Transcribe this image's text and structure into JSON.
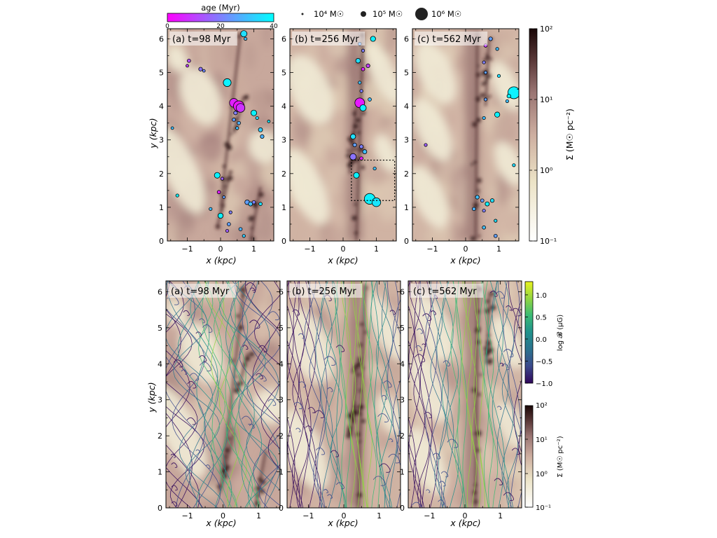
{
  "chart_data": [
    {
      "type": "heatmap",
      "name": "top-row-surface-density",
      "xlabel": "x (kpc)",
      "ylabel": "y (kpc)",
      "xlim": [
        -1.6,
        1.6
      ],
      "ylim": [
        0,
        6.3
      ],
      "xticks": [
        -1,
        0,
        1
      ],
      "yticks": [
        0,
        1,
        2,
        3,
        4,
        5,
        6
      ],
      "panels": [
        {
          "label": "(a) t=98 Myr"
        },
        {
          "label": "(b) t=256 Myr"
        },
        {
          "label": "(c) t=562 Myr"
        }
      ],
      "colorbar": {
        "label": "Σ (M☉ pc⁻²)",
        "scale": "log",
        "range": [
          0.1,
          100
        ],
        "ticks": [
          "10²",
          "10¹",
          "10⁰",
          "10⁻¹"
        ],
        "colors": [
          "#ffffff",
          "#e8e0c4",
          "#c9a89a",
          "#8e6a68",
          "#4a2c2c",
          "#1a0808"
        ]
      },
      "age_colorbar": {
        "label": "age (Myr)",
        "range": [
          0,
          40
        ],
        "ticks": [
          "0",
          "20",
          "40"
        ],
        "colors": [
          "#ff00ff",
          "#00ffff"
        ]
      },
      "size_legend": [
        "10⁴ M☉",
        "10⁵ M☉",
        "10⁶ M☉"
      ],
      "clusters": [
        [
          {
            "x": 0.7,
            "y": 6.15,
            "m": 5.0,
            "age": 35
          },
          {
            "x": 0.75,
            "y": 6.0,
            "m": 4.3,
            "age": 30
          },
          {
            "x": -0.95,
            "y": 5.35,
            "m": 4.4,
            "age": 12
          },
          {
            "x": -1.0,
            "y": 5.2,
            "m": 4.2,
            "age": 10
          },
          {
            "x": -0.6,
            "y": 5.1,
            "m": 4.5,
            "age": 18
          },
          {
            "x": -0.5,
            "y": 5.05,
            "m": 4.2,
            "age": 22
          },
          {
            "x": 0.2,
            "y": 4.7,
            "m": 5.2,
            "age": 38
          },
          {
            "x": 0.4,
            "y": 4.1,
            "m": 5.3,
            "age": 5
          },
          {
            "x": 0.55,
            "y": 4.0,
            "m": 5.5,
            "age": 3
          },
          {
            "x": 0.6,
            "y": 3.95,
            "m": 5.3,
            "age": 8
          },
          {
            "x": 0.45,
            "y": 3.8,
            "m": 4.5,
            "age": 20
          },
          {
            "x": 0.4,
            "y": 3.6,
            "m": 4.4,
            "age": 25
          },
          {
            "x": 0.55,
            "y": 3.5,
            "m": 4.4,
            "age": 28
          },
          {
            "x": 0.5,
            "y": 3.35,
            "m": 4.3,
            "age": 30
          },
          {
            "x": 1.0,
            "y": 3.8,
            "m": 4.9,
            "age": 38
          },
          {
            "x": 1.1,
            "y": 3.65,
            "m": 4.3,
            "age": 34
          },
          {
            "x": 1.2,
            "y": 3.3,
            "m": 4.6,
            "age": 32
          },
          {
            "x": 1.25,
            "y": 3.1,
            "m": 4.5,
            "age": 28
          },
          {
            "x": 1.45,
            "y": 3.55,
            "m": 4.2,
            "age": 36
          },
          {
            "x": -1.45,
            "y": 3.35,
            "m": 4.2,
            "age": 30
          },
          {
            "x": -0.1,
            "y": 1.95,
            "m": 4.9,
            "age": 38
          },
          {
            "x": 0.05,
            "y": 1.85,
            "m": 4.3,
            "age": 15
          },
          {
            "x": -0.05,
            "y": 1.45,
            "m": 4.4,
            "age": 5
          },
          {
            "x": 0.1,
            "y": 1.3,
            "m": 4.2,
            "age": 25
          },
          {
            "x": -1.3,
            "y": 1.35,
            "m": 4.3,
            "age": 38
          },
          {
            "x": 0.8,
            "y": 1.15,
            "m": 4.7,
            "age": 25
          },
          {
            "x": 0.9,
            "y": 1.1,
            "m": 4.6,
            "age": 30
          },
          {
            "x": 1.0,
            "y": 1.15,
            "m": 4.4,
            "age": 20
          },
          {
            "x": 1.2,
            "y": 1.1,
            "m": 4.4,
            "age": 35
          },
          {
            "x": 0.0,
            "y": 0.75,
            "m": 4.8,
            "age": 38
          },
          {
            "x": 0.3,
            "y": 0.85,
            "m": 4.3,
            "age": 20
          },
          {
            "x": 0.25,
            "y": 0.5,
            "m": 4.4,
            "age": 25
          },
          {
            "x": -0.3,
            "y": 0.95,
            "m": 4.3,
            "age": 30
          },
          {
            "x": 0.2,
            "y": 0.3,
            "m": 4.3,
            "age": 15
          },
          {
            "x": 0.6,
            "y": 0.35,
            "m": 4.4,
            "age": 28
          },
          {
            "x": 0.7,
            "y": 0.15,
            "m": 4.3,
            "age": 32
          }
        ],
        [
          {
            "x": 0.9,
            "y": 6.0,
            "m": 4.8,
            "age": 38
          },
          {
            "x": 0.5,
            "y": 5.85,
            "m": 4.4,
            "age": 25
          },
          {
            "x": 0.6,
            "y": 5.65,
            "m": 4.3,
            "age": 20
          },
          {
            "x": 0.45,
            "y": 5.35,
            "m": 4.7,
            "age": 35
          },
          {
            "x": 0.6,
            "y": 5.1,
            "m": 4.4,
            "age": 5
          },
          {
            "x": 0.75,
            "y": 5.2,
            "m": 4.5,
            "age": 10
          },
          {
            "x": 0.5,
            "y": 4.7,
            "m": 4.3,
            "age": 30
          },
          {
            "x": 0.55,
            "y": 4.45,
            "m": 4.3,
            "age": 20
          },
          {
            "x": 0.5,
            "y": 4.1,
            "m": 5.4,
            "age": 4
          },
          {
            "x": 0.6,
            "y": 3.95,
            "m": 5.0,
            "age": 38
          },
          {
            "x": 0.8,
            "y": 4.2,
            "m": 4.4,
            "age": 30
          },
          {
            "x": 0.3,
            "y": 3.1,
            "m": 4.8,
            "age": 35
          },
          {
            "x": 0.35,
            "y": 2.85,
            "m": 4.5,
            "age": 25
          },
          {
            "x": 0.55,
            "y": 2.8,
            "m": 4.5,
            "age": 20
          },
          {
            "x": 0.65,
            "y": 2.65,
            "m": 4.6,
            "age": 30
          },
          {
            "x": 0.3,
            "y": 2.5,
            "m": 5.0,
            "age": 18
          },
          {
            "x": 0.55,
            "y": 2.45,
            "m": 4.4,
            "age": 5
          },
          {
            "x": 0.95,
            "y": 2.15,
            "m": 4.3,
            "age": 30
          },
          {
            "x": 0.4,
            "y": 1.95,
            "m": 4.9,
            "age": 38
          },
          {
            "x": 0.8,
            "y": 1.25,
            "m": 5.5,
            "age": 38
          },
          {
            "x": 1.0,
            "y": 1.15,
            "m": 5.3,
            "age": 36
          }
        ],
        [
          {
            "x": 0.75,
            "y": 6.0,
            "m": 4.5,
            "age": 25
          },
          {
            "x": 0.6,
            "y": 5.8,
            "m": 4.4,
            "age": 10
          },
          {
            "x": 0.95,
            "y": 5.7,
            "m": 4.3,
            "age": 30
          },
          {
            "x": 0.55,
            "y": 5.3,
            "m": 4.3,
            "age": 20
          },
          {
            "x": 0.6,
            "y": 5.0,
            "m": 4.3,
            "age": 25
          },
          {
            "x": 1.0,
            "y": 4.9,
            "m": 4.3,
            "age": 35
          },
          {
            "x": 1.45,
            "y": 4.4,
            "m": 5.6,
            "age": 38
          },
          {
            "x": 1.3,
            "y": 4.3,
            "m": 4.5,
            "age": 38
          },
          {
            "x": 1.25,
            "y": 4.15,
            "m": 4.3,
            "age": 30
          },
          {
            "x": 0.6,
            "y": 4.2,
            "m": 4.3,
            "age": 25
          },
          {
            "x": 0.95,
            "y": 3.75,
            "m": 4.8,
            "age": 38
          },
          {
            "x": 0.55,
            "y": 3.65,
            "m": 4.3,
            "age": 30
          },
          {
            "x": -1.2,
            "y": 2.85,
            "m": 4.3,
            "age": 15
          },
          {
            "x": 1.45,
            "y": 2.25,
            "m": 4.3,
            "age": 35
          },
          {
            "x": 0.35,
            "y": 1.3,
            "m": 4.5,
            "age": 30
          },
          {
            "x": 0.5,
            "y": 1.2,
            "m": 4.4,
            "age": 25
          },
          {
            "x": 0.65,
            "y": 1.1,
            "m": 4.6,
            "age": 38
          },
          {
            "x": 0.8,
            "y": 1.2,
            "m": 4.5,
            "age": 35
          },
          {
            "x": 0.25,
            "y": 0.95,
            "m": 4.4,
            "age": 28
          },
          {
            "x": 0.55,
            "y": 0.9,
            "m": 4.3,
            "age": 20
          },
          {
            "x": 0.9,
            "y": 0.6,
            "m": 4.3,
            "age": 35
          },
          {
            "x": 0.55,
            "y": 0.4,
            "m": 4.4,
            "age": 30
          },
          {
            "x": 0.9,
            "y": 0.15,
            "m": 4.4,
            "age": 25
          }
        ]
      ],
      "zoom_box": {
        "x": [
          0.25,
          1.55
        ],
        "y": [
          1.2,
          2.4
        ]
      }
    },
    {
      "type": "heatmap",
      "name": "bottom-row-magnetic-field",
      "xlabel": "x (kpc)",
      "ylabel": "y (kpc)",
      "xlim": [
        -1.6,
        1.6
      ],
      "ylim": [
        0,
        6.3
      ],
      "xticks": [
        -1,
        0,
        1
      ],
      "yticks": [
        0,
        1,
        2,
        3,
        4,
        5,
        6
      ],
      "panels": [
        {
          "label": "(a) t=98 Myr"
        },
        {
          "label": "(b) t=256 Myr"
        },
        {
          "label": "(c) t=562 Myr"
        }
      ],
      "b_colorbar": {
        "label": "log 𝓑 (μG)",
        "range": [
          -1.0,
          1.3
        ],
        "ticks": [
          "1.0",
          "0.5",
          "0.0",
          "−0.5",
          "−1.0"
        ],
        "tick_values": [
          1.0,
          0.5,
          0.0,
          -0.5,
          -1.0
        ],
        "colors": [
          "#30075b",
          "#3b4a8c",
          "#2c728e",
          "#21918c",
          "#3bbb75",
          "#91d542",
          "#e8f21f"
        ]
      },
      "sigma_colorbar": {
        "label": "Σ (M☉ pc⁻²)",
        "range": [
          0.1,
          100
        ],
        "ticks": [
          "10²",
          "10¹",
          "10⁰",
          "10⁻¹"
        ]
      }
    }
  ]
}
